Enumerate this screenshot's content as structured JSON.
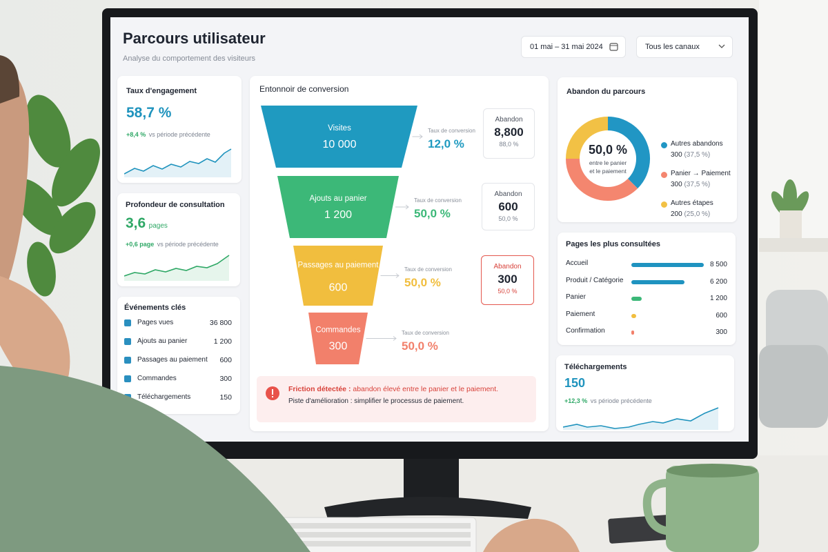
{
  "header": {
    "title": "Parcours utilisateur",
    "subtitle": "Analyse du comportement des visiteurs",
    "date_range": "01 mai – 31 mai 2024",
    "channel_filter": "Tous les canaux"
  },
  "engagement": {
    "title": "Taux d'engagement",
    "value": "58,7 %",
    "change": "+8,4 %",
    "change_note": "vs période précédente"
  },
  "depth": {
    "title": "Profondeur de consultation",
    "value": "3,6",
    "unit": "pages",
    "change": "+0,6 page",
    "change_note": "vs période précédente"
  },
  "events": {
    "title": "Événements clés",
    "items": [
      {
        "label": "Pages vues",
        "value": "36 800"
      },
      {
        "label": "Ajouts au panier",
        "value": "1 200"
      },
      {
        "label": "Passages au paiement",
        "value": "600"
      },
      {
        "label": "Commandes",
        "value": "300"
      },
      {
        "label": "Téléchargements",
        "value": "150"
      }
    ]
  },
  "funnel": {
    "title": "Entonnoir de conversion",
    "stages": [
      {
        "label": "Visites",
        "value": "10 000",
        "color": "#1f9ac0",
        "conversion_label": "Taux de conversion",
        "conversion": "12,0 %",
        "abandon_label": "Abandon",
        "abandon": "8,800",
        "abandon_rate": "88,0 %"
      },
      {
        "label": "Ajouts au panier",
        "value": "1 200",
        "color": "#3cb878",
        "conversion_label": "Taux de conversion",
        "conversion": "50,0 %",
        "abandon_label": "Abandon",
        "abandon": "600",
        "abandon_rate": "50,0 %"
      },
      {
        "label": "Passages au paiement",
        "value": "600",
        "color": "#f1be3e",
        "conversion_label": "Taux de conversion",
        "conversion": "50,0 %",
        "abandon_label": "Abandon",
        "abandon": "300",
        "abandon_rate": "50,0 %"
      },
      {
        "label": "Commandes",
        "value": "300",
        "color": "#f2806b",
        "conversion_label": "Taux de conversion",
        "conversion": "50,0 %"
      }
    ]
  },
  "alert": {
    "title": "Friction détectée :",
    "message": "abandon élevé entre le panier et le paiement.",
    "suggestion": "Piste d'amélioration : simplifier le processus de paiement."
  },
  "abandonment": {
    "title": "Abandon du parcours",
    "center_value": "50,0 %",
    "center_note_1": "entre le panier",
    "center_note_2": "et le paiement",
    "segments": [
      {
        "name": "Autres abandons",
        "value": 300,
        "share": "(37,5 %)",
        "color": "#2196c4"
      },
      {
        "name": "Panier → Paiement",
        "value": 300,
        "share": "(37,5 %)",
        "color": "#f4866f"
      },
      {
        "name": "Autres étapes",
        "value": 200,
        "share": "(25,0 %)",
        "color": "#f2c145"
      }
    ]
  },
  "top_pages": {
    "title": "Pages les plus consultées",
    "rows": [
      {
        "label": "Accueil",
        "value": {
          "value": 8500,
          "label": "8 500"
        },
        "color": "#1f93c0"
      },
      {
        "label": "Produit / Catégorie",
        "value": {
          "value": 6200,
          "label": "6 200"
        },
        "color": "#1f93c0"
      },
      {
        "label": "Panier",
        "value": {
          "value": 1200,
          "label": "1 200"
        },
        "color": "#3cb878"
      },
      {
        "label": "Paiement",
        "value": {
          "value": 600,
          "label": "600"
        },
        "color": "#f1be3e"
      },
      {
        "label": "Confirmation",
        "value": {
          "value": 300,
          "label": "300"
        },
        "color": "#f2806b"
      }
    ]
  },
  "downloads": {
    "title": "Téléchargements",
    "value": "150",
    "change": "+12,3 %",
    "change_note": "vs période précédente"
  }
}
